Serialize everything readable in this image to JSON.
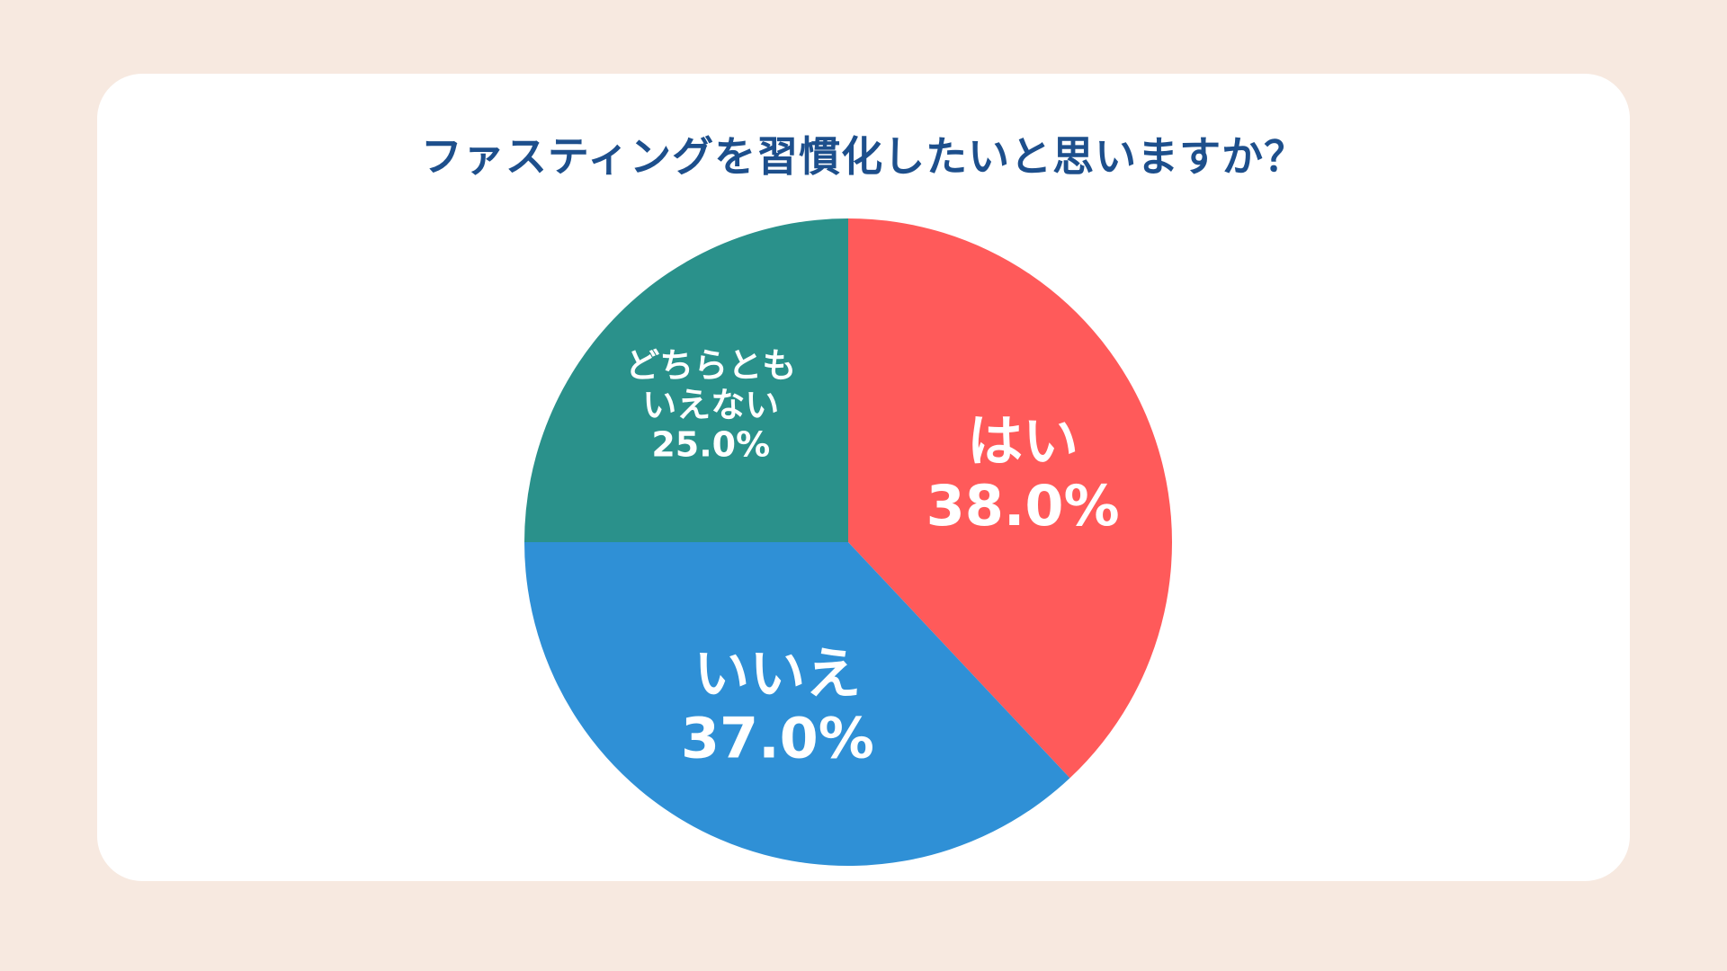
{
  "title": "ファスティングを習慣化したいと思いますか？",
  "chart_data": {
    "type": "pie",
    "title": "ファスティングを習慣化したいと思いますか？",
    "slices": [
      {
        "label_lines": [
          "はい"
        ],
        "percent_label": "38.0%",
        "value": 38.0,
        "color": "#ff5a5a"
      },
      {
        "label_lines": [
          "いいえ"
        ],
        "percent_label": "37.0%",
        "value": 37.0,
        "color": "#2f90d6"
      },
      {
        "label_lines": [
          "どちらとも",
          "いえない"
        ],
        "percent_label": "25.0%",
        "value": 25.0,
        "color": "#2a918b"
      }
    ],
    "start": "12 o'clock",
    "direction": "clockwise"
  }
}
